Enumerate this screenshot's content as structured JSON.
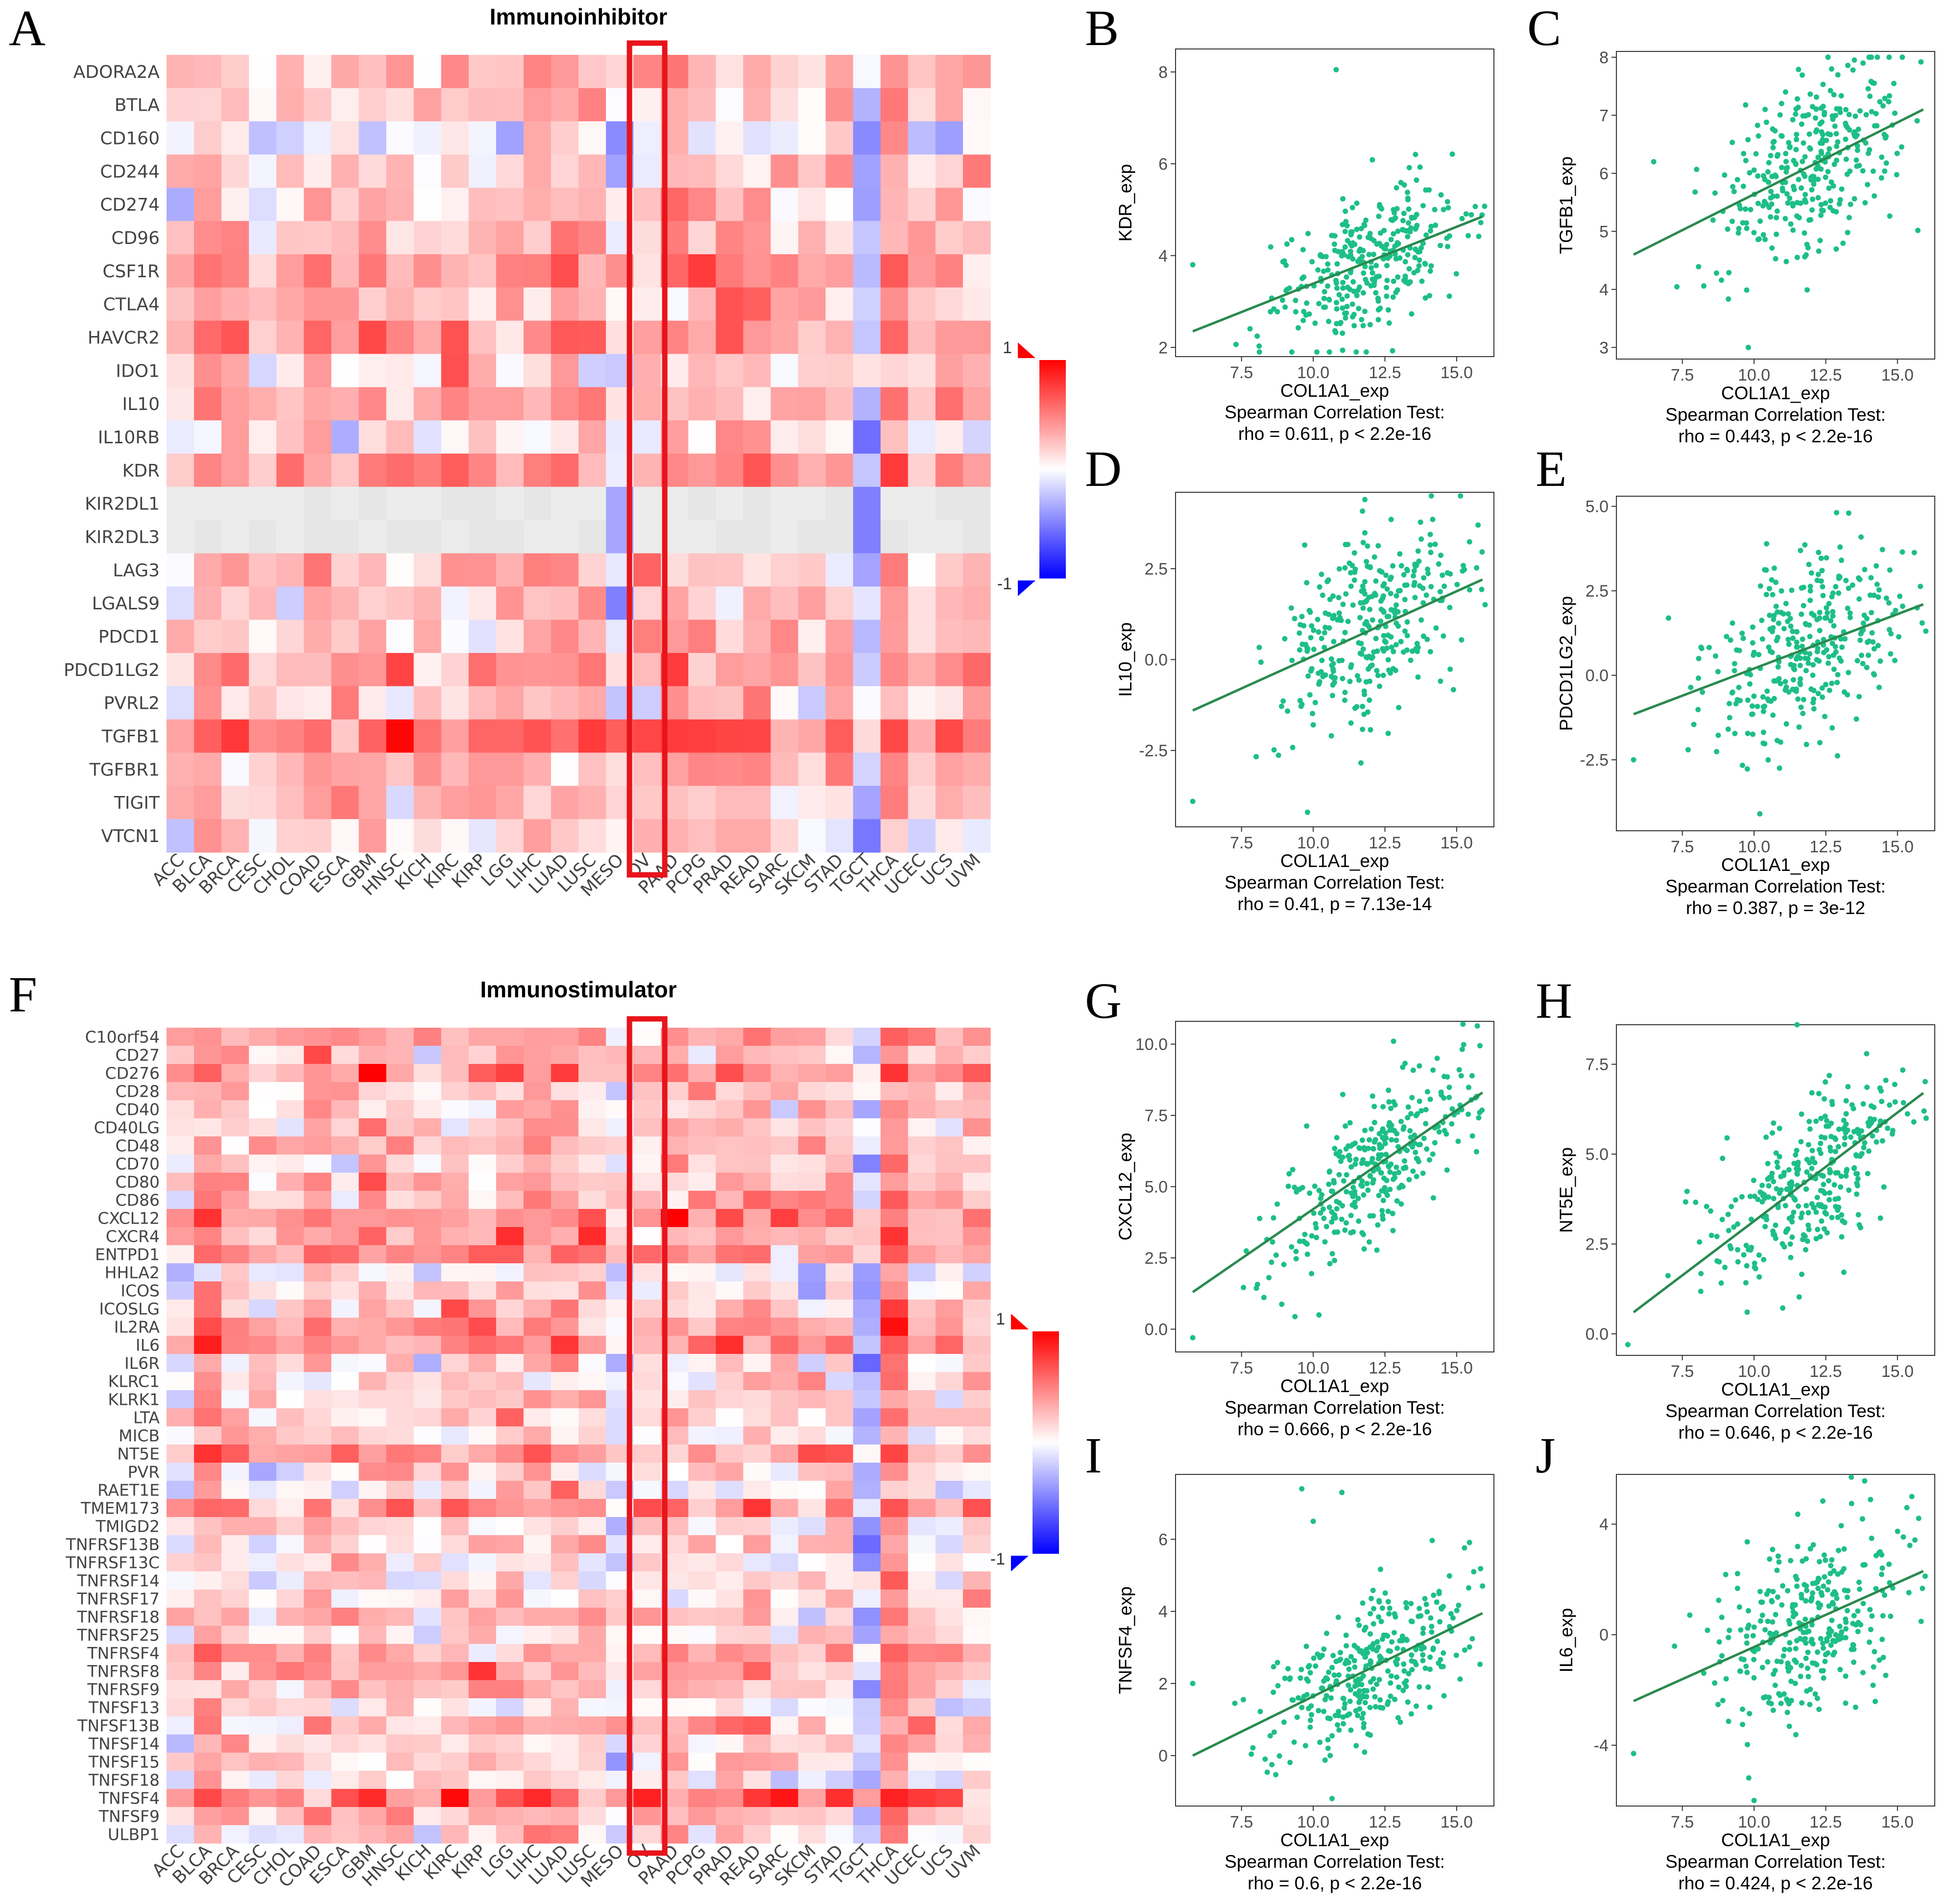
{
  "figure": {
    "colors": {
      "positive": "#ff0000",
      "neutral": "#ffffff",
      "negative": "#0000ff",
      "point": "#1dbf86",
      "fit": "#2a8a4e"
    }
  },
  "chart_data": [
    {
      "panel": "A",
      "type": "heatmap",
      "title": "Immunoinhibitor",
      "highlight_column": "OV",
      "colorbar": {
        "max_label": "1",
        "min_label": "-1",
        "range": [
          -1,
          1
        ]
      },
      "columns": [
        "ACC",
        "BLCA",
        "BRCA",
        "CESC",
        "CHOL",
        "COAD",
        "ESCA",
        "GBM",
        "HNSC",
        "KICH",
        "KIRC",
        "KIRP",
        "LGG",
        "LIHC",
        "LUAD",
        "LUSC",
        "MESO",
        "OV",
        "PAAD",
        "PCPG",
        "PRAD",
        "READ",
        "SARC",
        "SKCM",
        "STAD",
        "TGCT",
        "THCA",
        "UCEC",
        "UCS",
        "UVM"
      ],
      "rows": [
        "ADORA2A",
        "BTLA",
        "CD160",
        "CD244",
        "CD274",
        "CD96",
        "CSF1R",
        "CTLA4",
        "HAVCR2",
        "IDO1",
        "IL10",
        "IL10RB",
        "KDR",
        "KIR2DL1",
        "KIR2DL3",
        "LAG3",
        "LGALS9",
        "PDCD1",
        "PDCD1LG2",
        "PVRL2",
        "TGFB1",
        "TGFBR1",
        "TIGIT",
        "VTCN1"
      ],
      "row_means": [
        0.25,
        0.18,
        -0.08,
        0.12,
        0.15,
        0.22,
        0.4,
        0.2,
        0.38,
        0.15,
        0.3,
        0.08,
        0.35,
        0.0,
        0.0,
        0.18,
        0.15,
        0.2,
        0.38,
        0.12,
        0.55,
        0.3,
        0.22,
        0.1
      ],
      "col_offsets": [
        -0.1,
        0.18,
        0.08,
        -0.08,
        0.0,
        0.12,
        0.05,
        0.12,
        0.02,
        -0.05,
        0.02,
        0.05,
        0.1,
        0.1,
        0.12,
        0.08,
        -0.25,
        0.0,
        0.12,
        0.05,
        0.15,
        0.18,
        0.02,
        -0.05,
        0.05,
        -0.45,
        0.25,
        -0.02,
        0.05,
        0.0
      ]
    },
    {
      "panel": "F",
      "type": "heatmap",
      "title": "Immunostimulator",
      "highlight_column": "OV",
      "colorbar": {
        "max_label": "1",
        "min_label": "-1",
        "range": [
          -1,
          1
        ]
      },
      "columns": [
        "ACC",
        "BLCA",
        "BRCA",
        "CESC",
        "CHOL",
        "COAD",
        "ESCA",
        "GBM",
        "HNSC",
        "KICH",
        "KIRC",
        "KIRP",
        "LGG",
        "LIHC",
        "LUAD",
        "LUSC",
        "MESO",
        "OV",
        "PAAD",
        "PCPG",
        "PRAD",
        "READ",
        "SARC",
        "SKCM",
        "STAD",
        "TGCT",
        "THCA",
        "UCEC",
        "UCS",
        "UVM"
      ],
      "rows": [
        "C10orf54",
        "CD27",
        "CD276",
        "CD28",
        "CD40",
        "CD40LG",
        "CD48",
        "CD70",
        "CD80",
        "CD86",
        "CXCL12",
        "CXCR4",
        "ENTPD1",
        "HHLA2",
        "ICOS",
        "ICOSLG",
        "IL2RA",
        "IL6",
        "IL6R",
        "KLRC1",
        "KLRK1",
        "LTA",
        "MICB",
        "NT5E",
        "PVR",
        "RAET1E",
        "TMEM173",
        "TMIGD2",
        "TNFRSF13B",
        "TNFRSF13C",
        "TNFRSF14",
        "TNFRSF17",
        "TNFRSF18",
        "TNFRSF25",
        "TNFRSF4",
        "TNFRSF8",
        "TNFRSF9",
        "TNFSF13",
        "TNFSF13B",
        "TNFSF14",
        "TNFSF15",
        "TNFSF18",
        "TNFSF4",
        "TNFSF9",
        "ULBP1"
      ],
      "row_means": [
        0.25,
        0.18,
        0.45,
        0.22,
        0.18,
        0.12,
        0.2,
        0.15,
        0.25,
        0.25,
        0.45,
        0.3,
        0.38,
        -0.05,
        0.12,
        0.2,
        0.35,
        0.4,
        0.05,
        0.08,
        0.1,
        0.15,
        0.12,
        0.35,
        0.1,
        0.05,
        0.4,
        0.08,
        0.08,
        0.05,
        0.05,
        0.12,
        0.2,
        0.1,
        0.25,
        0.3,
        0.2,
        0.05,
        0.22,
        0.1,
        0.08,
        0.05,
        0.45,
        0.25,
        0.05
      ],
      "col_offsets": [
        -0.08,
        0.2,
        0.1,
        -0.05,
        -0.02,
        0.12,
        0.05,
        0.1,
        0.02,
        -0.05,
        0.05,
        0.05,
        0.1,
        0.12,
        0.12,
        0.05,
        -0.2,
        0.05,
        0.1,
        0.0,
        0.08,
        0.12,
        0.02,
        0.0,
        0.05,
        -0.35,
        0.3,
        0.0,
        0.0,
        0.02
      ]
    },
    {
      "panel": "B",
      "type": "scatter",
      "xlabel": "COL1A1_exp",
      "ylabel": "KDR_exp",
      "xlim": [
        5.2,
        16.3
      ],
      "ylim": [
        1.8,
        8.5
      ],
      "xticks": [
        7.5,
        10.0,
        12.5,
        15.0
      ],
      "yticks": [
        2,
        4,
        6,
        8
      ],
      "fit": [
        [
          5.8,
          2.35
        ],
        [
          15.9,
          4.85
        ]
      ],
      "outliers": [
        [
          10.8,
          8.05
        ],
        [
          11.5,
          1.9
        ],
        [
          5.8,
          3.8
        ]
      ],
      "n": 320,
      "spread": 0.75,
      "test": "Spearman Correlation Test:",
      "stat": "rho = 0.611, p < 2.2e-16"
    },
    {
      "panel": "C",
      "type": "scatter",
      "xlabel": "COL1A1_exp",
      "ylabel": "TGFB1_exp",
      "xlim": [
        5.2,
        16.3
      ],
      "ylim": [
        2.8,
        8.1
      ],
      "xticks": [
        7.5,
        10.0,
        12.5,
        15.0
      ],
      "yticks": [
        3,
        4,
        5,
        6,
        7,
        8
      ],
      "fit": [
        [
          5.8,
          4.6
        ],
        [
          15.9,
          7.1
        ]
      ],
      "outliers": [
        [
          9.8,
          3.0
        ],
        [
          6.5,
          6.2
        ],
        [
          13.8,
          7.9
        ]
      ],
      "n": 320,
      "spread": 0.75,
      "test": "Spearman Correlation Test:",
      "stat": "rho = 0.443, p < 2.2e-16"
    },
    {
      "panel": "D",
      "type": "scatter",
      "xlabel": "COL1A1_exp",
      "ylabel": "IL10_exp",
      "xlim": [
        5.2,
        16.3
      ],
      "ylim": [
        -4.6,
        4.6
      ],
      "xticks": [
        7.5,
        10.0,
        12.5,
        15.0
      ],
      "yticks": [
        -2.5,
        0.0,
        2.5
      ],
      "fit": [
        [
          5.8,
          -1.4
        ],
        [
          15.9,
          2.2
        ]
      ],
      "outliers": [
        [
          11.8,
          4.4
        ],
        [
          5.8,
          -3.9
        ],
        [
          9.8,
          -4.2
        ]
      ],
      "n": 320,
      "spread": 1.3,
      "test": "Spearman Correlation Test:",
      "stat": "rho = 0.41, p = 7.13e-14"
    },
    {
      "panel": "E",
      "type": "scatter",
      "xlabel": "COL1A1_exp",
      "ylabel": "PDCD1LG2_exp",
      "xlim": [
        5.2,
        16.3
      ],
      "ylim": [
        -4.6,
        5.3
      ],
      "xticks": [
        7.5,
        10.0,
        12.5,
        15.0
      ],
      "yticks": [
        -2.5,
        0.0,
        2.5,
        5.0
      ],
      "fit": [
        [
          5.8,
          -1.15
        ],
        [
          15.9,
          2.1
        ]
      ],
      "outliers": [
        [
          13.3,
          4.8
        ],
        [
          5.8,
          -2.5
        ],
        [
          10.2,
          -4.1
        ]
      ],
      "n": 320,
      "spread": 1.3,
      "test": "Spearman Correlation Test:",
      "stat": "rho = 0.387, p = 3e-12"
    },
    {
      "panel": "G",
      "type": "scatter",
      "xlabel": "COL1A1_exp",
      "ylabel": "CXCL12_exp",
      "xlim": [
        5.2,
        16.3
      ],
      "ylim": [
        -0.8,
        10.8
      ],
      "xticks": [
        7.5,
        10.0,
        12.5,
        15.0
      ],
      "yticks": [
        0.0,
        2.5,
        5.0,
        7.5,
        10.0
      ],
      "fit": [
        [
          5.8,
          1.3
        ],
        [
          15.9,
          8.3
        ]
      ],
      "outliers": [
        [
          5.8,
          -0.3
        ],
        [
          12.8,
          10.1
        ],
        [
          10.2,
          0.5
        ]
      ],
      "n": 320,
      "spread": 1.2,
      "test": "Spearman Correlation Test:",
      "stat": "rho = 0.666, p < 2.2e-16"
    },
    {
      "panel": "H",
      "type": "scatter",
      "xlabel": "COL1A1_exp",
      "ylabel": "NT5E_exp",
      "xlim": [
        5.2,
        16.3
      ],
      "ylim": [
        -0.6,
        8.6
      ],
      "xticks": [
        7.5,
        10.0,
        12.5,
        15.0
      ],
      "yticks": [
        0.0,
        2.5,
        5.0,
        7.5
      ],
      "fit": [
        [
          5.8,
          0.6
        ],
        [
          15.9,
          6.7
        ]
      ],
      "outliers": [
        [
          11.5,
          8.6
        ],
        [
          5.6,
          -0.3
        ],
        [
          16.0,
          6.0
        ]
      ],
      "n": 320,
      "spread": 1.1,
      "test": "Spearman Correlation Test:",
      "stat": "rho = 0.646, p < 2.2e-16"
    },
    {
      "panel": "I",
      "type": "scatter",
      "xlabel": "COL1A1_exp",
      "ylabel": "TNFSF4_exp",
      "xlim": [
        5.2,
        16.3
      ],
      "ylim": [
        -1.4,
        7.8
      ],
      "xticks": [
        7.5,
        10.0,
        12.5,
        15.0
      ],
      "yticks": [
        0,
        2,
        4,
        6
      ],
      "fit": [
        [
          5.8,
          0.0
        ],
        [
          15.9,
          3.95
        ]
      ],
      "outliers": [
        [
          9.6,
          7.4
        ],
        [
          11.0,
          7.3
        ],
        [
          10.0,
          6.5
        ],
        [
          5.8,
          2.0
        ]
      ],
      "n": 320,
      "spread": 0.9,
      "test": "Spearman Correlation Test:",
      "stat": "rho = 0.6, p < 2.2e-16"
    },
    {
      "panel": "J",
      "type": "scatter",
      "xlabel": "COL1A1_exp",
      "ylabel": "IL6_exp",
      "xlim": [
        5.2,
        16.3
      ],
      "ylim": [
        -6.2,
        5.8
      ],
      "xticks": [
        7.5,
        10.0,
        12.5,
        15.0
      ],
      "yticks": [
        -4,
        0,
        4
      ],
      "fit": [
        [
          5.8,
          -2.4
        ],
        [
          15.9,
          2.3
        ]
      ],
      "outliers": [
        [
          10.0,
          -6.0
        ],
        [
          5.8,
          -4.3
        ],
        [
          15.5,
          5.0
        ]
      ],
      "n": 320,
      "spread": 1.6,
      "test": "Spearman Correlation Test:",
      "stat": "rho = 0.424, p < 2.2e-16"
    }
  ]
}
